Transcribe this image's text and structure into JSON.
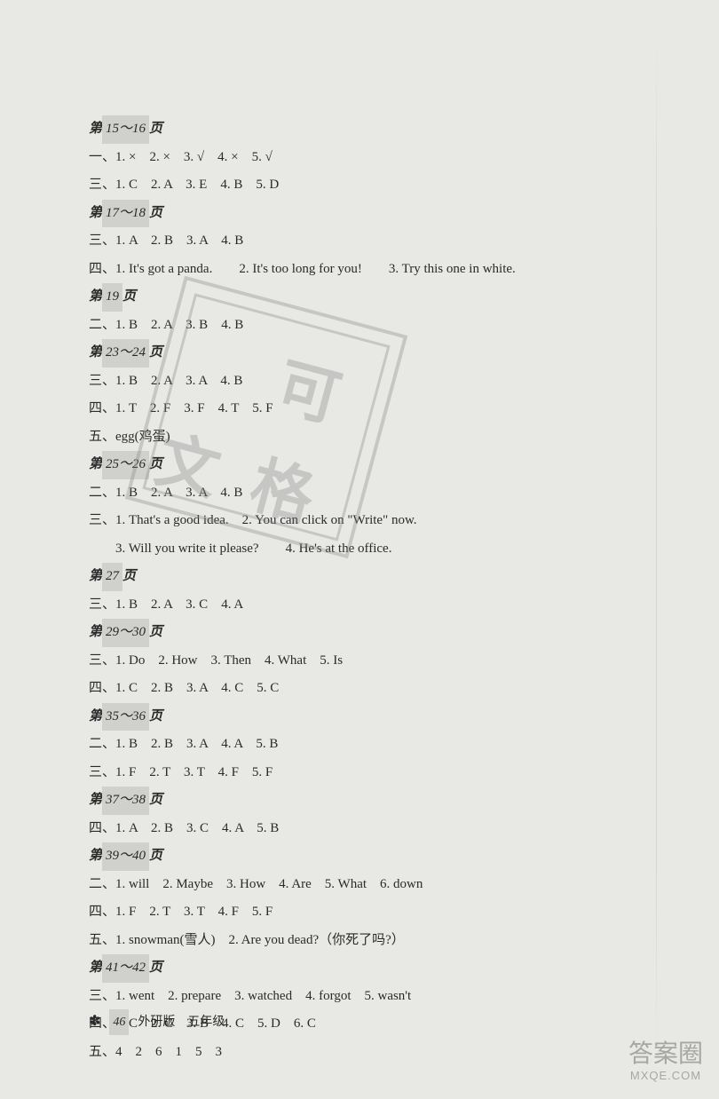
{
  "background_color": "#e8e8e5",
  "text_color": "#2a2a2a",
  "font_family": "SimSun, Times New Roman, serif",
  "base_font_size": 15,
  "line_height": 2.1,
  "sections": {
    "s1": {
      "header_prefix": "第",
      "page_range": "15～16",
      "header_suffix": "页",
      "lines": [
        "一、1. ×　2. ×　3. √　4. ×　5. √",
        "三、1. C　2. A　3. E　4. B　5. D"
      ]
    },
    "s2": {
      "header_prefix": "第",
      "page_range": "17～18",
      "header_suffix": "页",
      "lines": [
        "三、1. A　2. B　3. A　4. B",
        "四、1. It's got a panda.　　2. It's too long for you!　　3. Try this one in white."
      ]
    },
    "s3": {
      "header_prefix": "第",
      "page_range": "19",
      "header_suffix": "页",
      "lines": [
        "二、1. B　2. A　3. B　4. B"
      ]
    },
    "s4": {
      "header_prefix": "第",
      "page_range": "23～24",
      "header_suffix": "页",
      "lines": [
        "三、1. B　2. A　3. A　4. B",
        "四、1. T　2. F　3. F　4. T　5. F",
        "五、egg(鸡蛋)"
      ]
    },
    "s5": {
      "header_prefix": "第",
      "page_range": "25～26",
      "header_suffix": "页",
      "lines": [
        "二、1. B　2. A　3. A　4. B",
        "三、1. That's a good idea.　2. You can click on \"Write\" now.",
        "　　3. Will you write it please?　　4. He's at the office."
      ]
    },
    "s6": {
      "header_prefix": "第",
      "page_range": "27",
      "header_suffix": "页",
      "lines": [
        "三、1. B　2. A　3. C　4. A"
      ]
    },
    "s7": {
      "header_prefix": "第",
      "page_range": "29～30",
      "header_suffix": "页",
      "lines": [
        "三、1. Do　2. How　3. Then　4. What　5. Is",
        "四、1. C　2. B　3. A　4. C　5. C"
      ]
    },
    "s8": {
      "header_prefix": "第",
      "page_range": "35～36",
      "header_suffix": "页",
      "lines": [
        "二、1. B　2. B　3. A　4. A　5. B",
        "三、1. F　2. T　3. T　4. F　5. F"
      ]
    },
    "s9": {
      "header_prefix": "第",
      "page_range": "37～38",
      "header_suffix": "页",
      "lines": [
        "四、1. A　2. B　3. C　4. A　5. B"
      ]
    },
    "s10": {
      "header_prefix": "第",
      "page_range": "39～40",
      "header_suffix": "页",
      "lines": [
        "二、1. will　2. Maybe　3. How　4. Are　5. What　6. down",
        "四、1. F　2. T　3. T　4. F　5. F",
        "五、1. snowman(雪人)　2. Are you dead?（你死了吗?）"
      ]
    },
    "s11": {
      "header_prefix": "第",
      "page_range": "41～42",
      "header_suffix": "页",
      "lines": [
        "三、1. went　2. prepare　3. watched　4. forgot　5. wasn't",
        "四、1. C　2. C　3. B　4. C　5. D　6. C",
        "五、4　2　6　1　5　3"
      ]
    }
  },
  "footer": {
    "page_number": "46",
    "text": "外研版　五年级"
  },
  "watermark": {
    "chars": [
      "可",
      "文",
      "格"
    ],
    "border_color": "#888",
    "opacity": 0.35
  },
  "bottom_watermark": {
    "text": "答案圈",
    "url": "MXQE.COM"
  }
}
